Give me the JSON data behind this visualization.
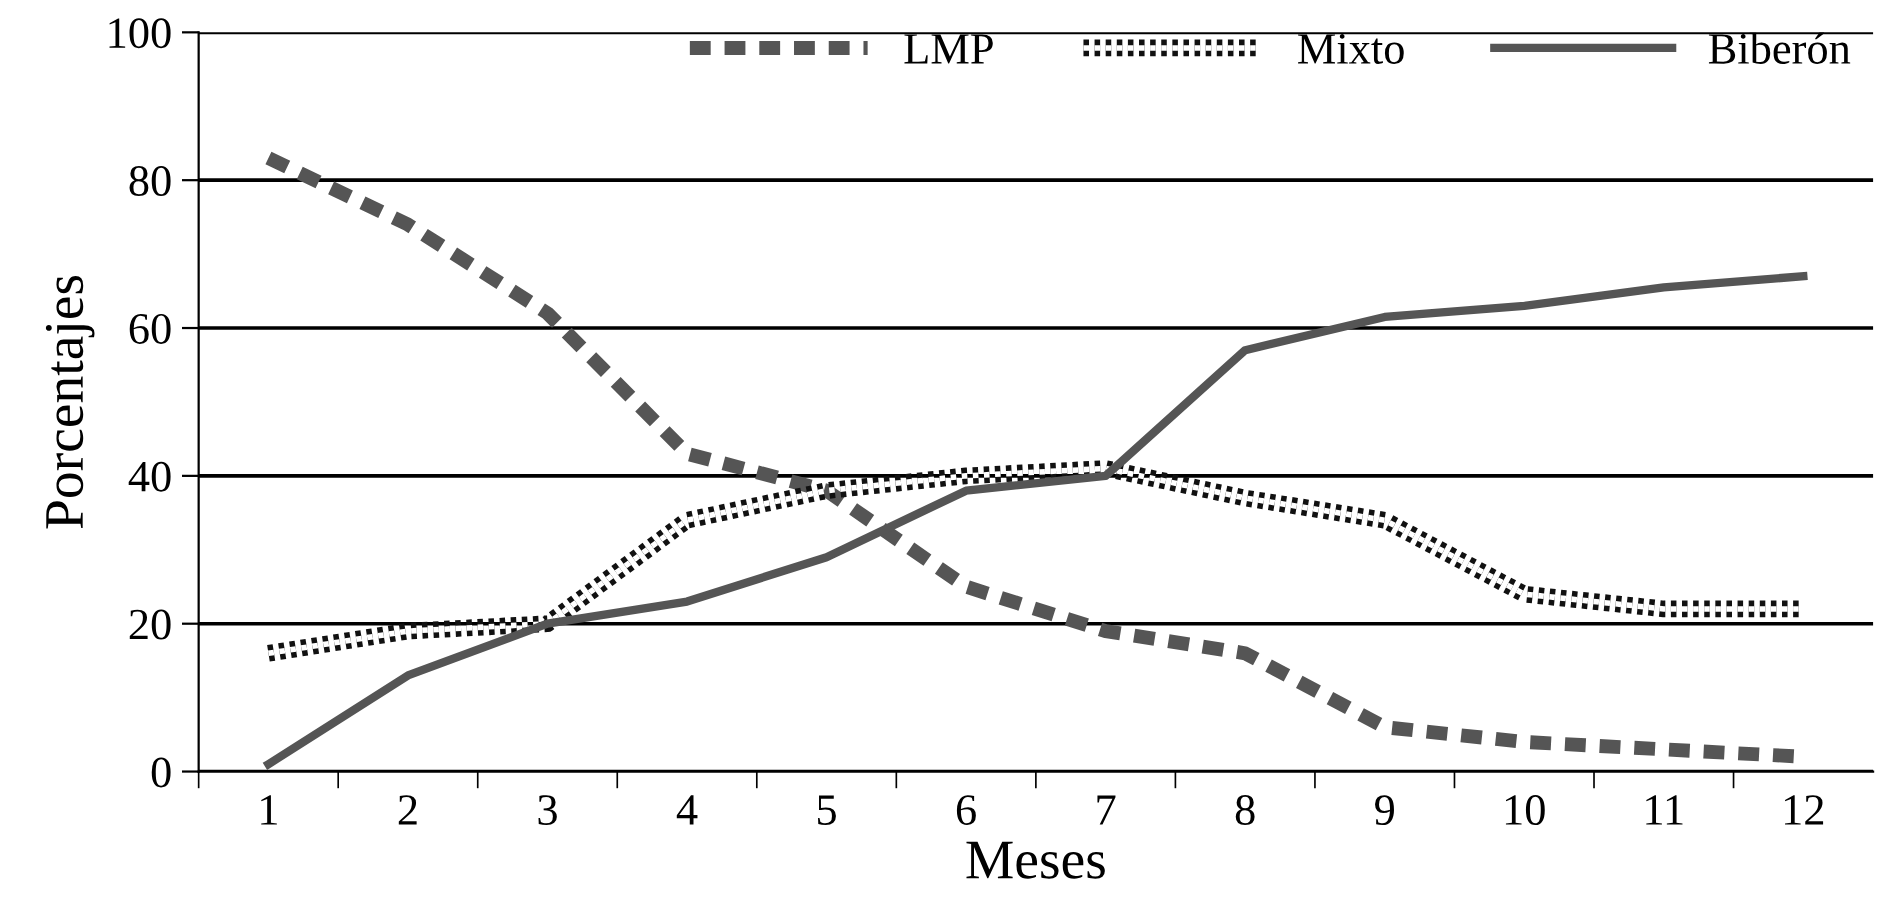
{
  "chart_data": {
    "type": "line",
    "xlabel": "Meses",
    "ylabel": "Porcentajes",
    "categories": [
      "1",
      "2",
      "3",
      "4",
      "5",
      "6",
      "7",
      "8",
      "9",
      "10",
      "11",
      "12"
    ],
    "ylim": [
      0,
      100
    ],
    "yticks": [
      0,
      20,
      40,
      60,
      80,
      100
    ],
    "grid": "y",
    "legend": "top right",
    "marker": "none",
    "series": [
      {
        "name": "LMP",
        "color": "#555555",
        "line_style": "dashed",
        "values": [
          83,
          74,
          62,
          43,
          38,
          25,
          19,
          16,
          6,
          4,
          3,
          2
        ]
      },
      {
        "name": "Mixto",
        "color": "#111111",
        "line_style": "dotted",
        "values": [
          16,
          19,
          20,
          34,
          38,
          40,
          41,
          37,
          34,
          24,
          22,
          22
        ]
      },
      {
        "name": "Biberón",
        "color": "#555555",
        "line_style": "solid",
        "values": [
          1,
          13,
          20,
          23,
          29,
          38,
          40,
          57,
          61.5,
          63,
          65.5,
          67
        ]
      }
    ]
  }
}
